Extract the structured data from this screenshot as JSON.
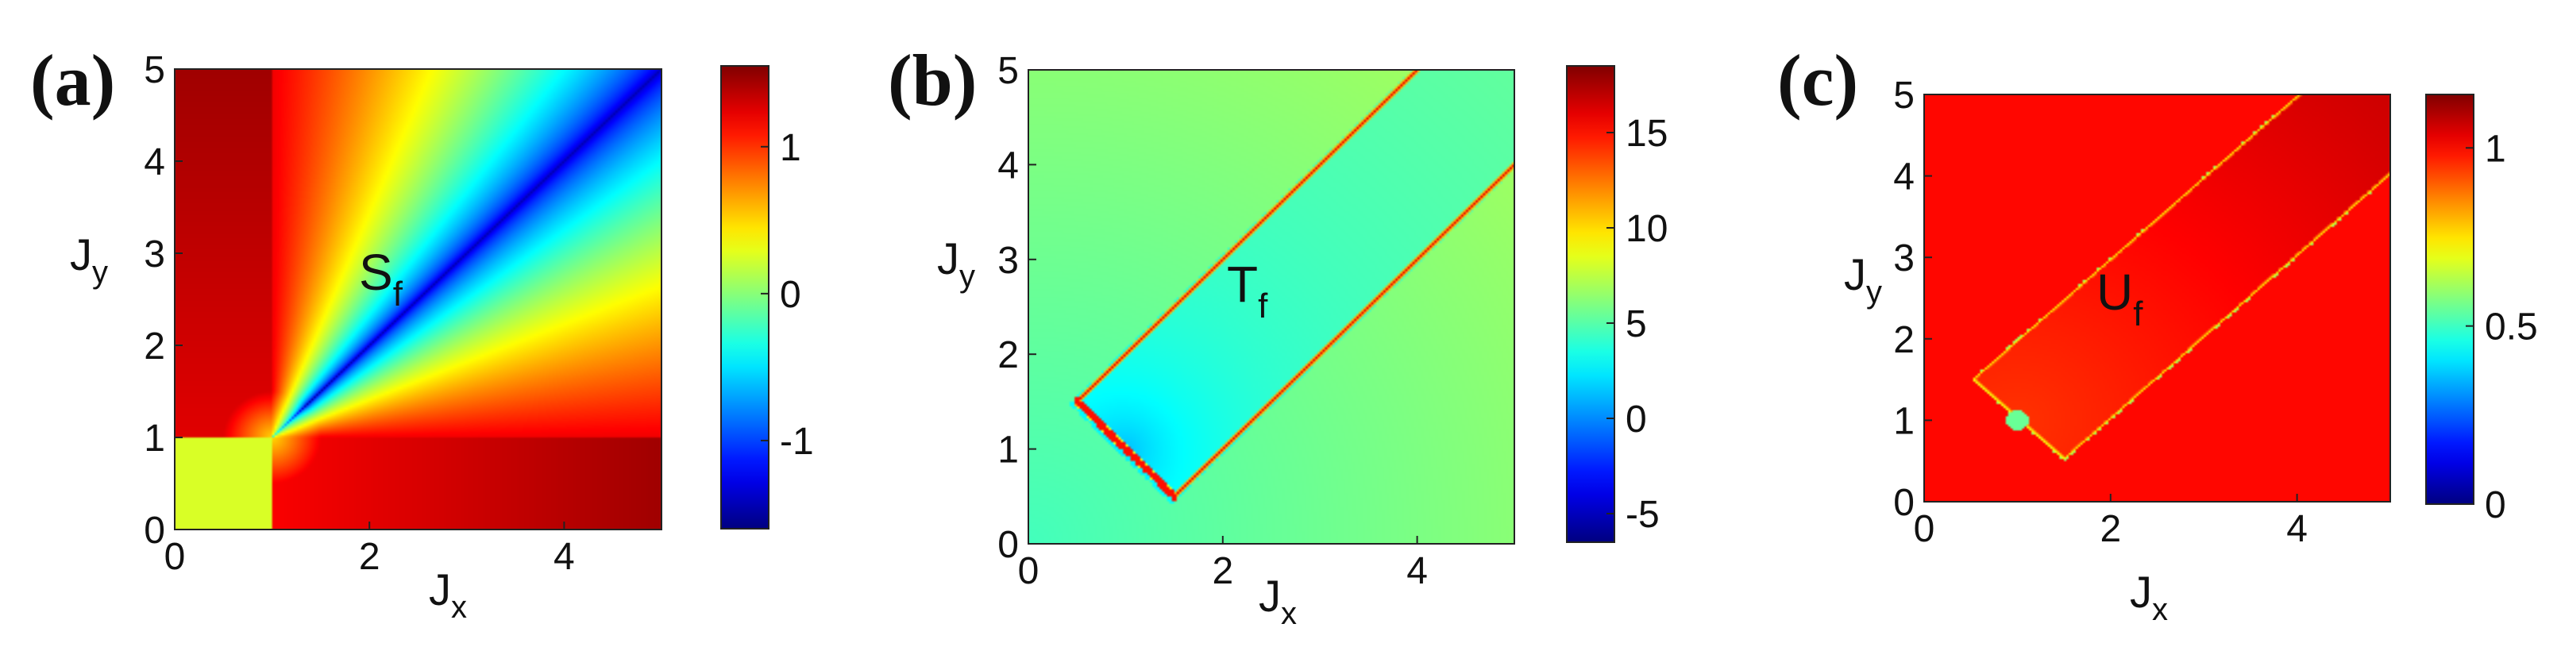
{
  "chart_data": [
    {
      "type": "heatmap",
      "panel_label": "(a)",
      "annotation": {
        "main": "S",
        "sub": "f"
      },
      "xlabel": {
        "main": "J",
        "sub": "x"
      },
      "ylabel": {
        "main": "J",
        "sub": "y"
      },
      "xlim": [
        0,
        5
      ],
      "ylim": [
        0,
        5
      ],
      "xticks": [
        "0",
        "2",
        "4"
      ],
      "yticks": [
        "0",
        "1",
        "2",
        "3",
        "4",
        "5"
      ],
      "colorbar": {
        "range": [
          -1.6,
          1.55
        ],
        "ticks": [
          "-1",
          "0",
          "1"
        ]
      },
      "colormap": "jet",
      "field": "Sf"
    },
    {
      "type": "heatmap",
      "panel_label": "(b)",
      "annotation": {
        "main": "T",
        "sub": "f"
      },
      "xlabel": {
        "main": "J",
        "sub": "x"
      },
      "ylabel": {
        "main": "J",
        "sub": "y"
      },
      "xlim": [
        0,
        5
      ],
      "ylim": [
        0,
        5
      ],
      "xticks": [
        "0",
        "2",
        "4"
      ],
      "yticks": [
        "0",
        "1",
        "2",
        "3",
        "4",
        "5"
      ],
      "colorbar": {
        "range": [
          -6.5,
          18.5
        ],
        "ticks": [
          "-5",
          "0",
          "5",
          "10",
          "15"
        ]
      },
      "colormap": "jet",
      "field": "Tf"
    },
    {
      "type": "heatmap",
      "panel_label": "(c)",
      "annotation": {
        "main": "U",
        "sub": "f"
      },
      "xlabel": {
        "main": "J",
        "sub": "x"
      },
      "ylabel": {
        "main": "J",
        "sub": "y"
      },
      "xlim": [
        0,
        5
      ],
      "ylim": [
        0,
        5
      ],
      "xticks": [
        "0",
        "2",
        "4"
      ],
      "yticks": [
        "0",
        "1",
        "2",
        "3",
        "4",
        "5"
      ],
      "colorbar": {
        "range": [
          0,
          1.15
        ],
        "ticks": [
          "0",
          "0.5",
          "1"
        ]
      },
      "colormap": "jet",
      "field": "Uf"
    }
  ]
}
